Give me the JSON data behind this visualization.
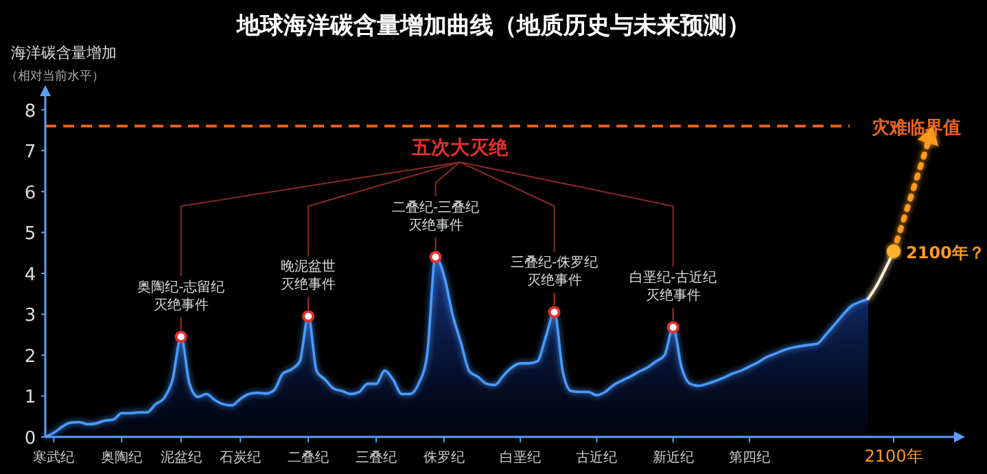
{
  "chart_data": {
    "type": "area",
    "title": "地球海洋碳含量增加曲线（地质历史与未来预测）",
    "ylabel": "海洋碳含量增加（相对当前水平）",
    "categories": [
      null,
      "寒武纪",
      null,
      null,
      null,
      null,
      null,
      null,
      null,
      "奥陶纪",
      null,
      null,
      null,
      null,
      null,
      null,
      "泥盆纪",
      null,
      null,
      null,
      null,
      null,
      null,
      "石炭纪",
      null,
      null,
      null,
      null,
      null,
      null,
      null,
      "二叠纪",
      null,
      null,
      null,
      null,
      null,
      null,
      null,
      "三叠纪",
      null,
      null,
      null,
      null,
      null,
      null,
      null,
      "侏罗纪",
      null,
      null,
      null,
      null,
      null,
      null,
      null,
      null,
      "白垩纪",
      null,
      null,
      null,
      null,
      null,
      null,
      null,
      null,
      "古近纪",
      null,
      null,
      null,
      null,
      null,
      null,
      null,
      null,
      "新近纪",
      null,
      null,
      null,
      null,
      null,
      null,
      null,
      null,
      "第四纪",
      null,
      null,
      null,
      null,
      null,
      null,
      null,
      null,
      null,
      null,
      null,
      null,
      null,
      null,
      null,
      null,
      "2100年"
    ],
    "ylim": [
      0,
      8.4
    ],
    "yticks": [
      0,
      1,
      2,
      3,
      4,
      5,
      6,
      7,
      8
    ],
    "series": [
      {
        "color": "#4a9bff",
        "values": [
          0,
          0.1,
          0.25,
          0.35,
          0.36,
          0.31,
          0.33,
          0.4,
          0.42,
          0.58,
          0.58,
          0.6,
          0.6,
          0.8,
          0.95,
          1.4,
          2.45,
          1.3,
          0.98,
          1.05,
          0.9,
          0.8,
          0.77,
          0.93,
          1.05,
          1.08,
          1.06,
          1.15,
          1.55,
          1.65,
          1.85,
          2.95,
          1.6,
          1.4,
          1.18,
          1.12,
          1.05,
          1.1,
          1.3,
          1.3,
          1.62,
          1.4,
          1.05,
          1.05,
          1.3,
          2.0,
          4.4,
          3.95,
          3.0,
          2.3,
          1.6,
          1.47,
          1.3,
          1.27,
          1.5,
          1.7,
          1.8,
          1.8,
          1.85,
          2.45,
          3.05,
          1.6,
          1.12,
          1.1,
          1.1,
          1.02,
          1.1,
          1.27,
          1.38,
          1.48,
          1.6,
          1.7,
          1.85,
          2.0,
          2.68,
          1.7,
          1.3,
          1.25,
          1.3,
          1.37,
          1.45,
          1.55,
          1.62,
          1.72,
          1.82,
          1.95,
          2.03,
          2.12,
          2.18,
          2.22,
          2.25,
          2.28,
          2.5,
          2.74,
          2.98,
          3.2,
          3.3,
          3.38,
          null,
          null,
          null
        ]
      },
      {
        "type": "line",
        "color": "#fff0d0",
        "values": [
          null,
          null,
          null,
          null,
          null,
          null,
          null,
          null,
          null,
          null,
          null,
          null,
          null,
          null,
          null,
          null,
          null,
          null,
          null,
          null,
          null,
          null,
          null,
          null,
          null,
          null,
          null,
          null,
          null,
          null,
          null,
          null,
          null,
          null,
          null,
          null,
          null,
          null,
          null,
          null,
          null,
          null,
          null,
          null,
          null,
          null,
          null,
          null,
          null,
          null,
          null,
          null,
          null,
          null,
          null,
          null,
          null,
          null,
          null,
          null,
          null,
          null,
          null,
          null,
          null,
          null,
          null,
          null,
          null,
          null,
          null,
          null,
          null,
          null,
          null,
          null,
          null,
          null,
          null,
          null,
          null,
          null,
          null,
          null,
          null,
          null,
          null,
          null,
          null,
          null,
          null,
          null,
          null,
          null,
          null,
          null,
          null,
          3.38,
          3.7,
          4.1,
          4.54
        ]
      }
    ],
    "ref_lines": [
      {
        "axis": "y",
        "value": 7.6,
        "label": "灾难临界值",
        "color": "#e8641e",
        "line_style": "dashed"
      }
    ],
    "annotations": [
      "五次大灭绝",
      {
        "text": "奥陶纪-志留纪灭绝事件",
        "y": 2.45
      },
      {
        "text": "晚泥盆世灭绝事件",
        "y": 2.95
      },
      {
        "text": "二叠纪-三叠纪灭绝事件",
        "y": 4.4
      },
      {
        "text": "三叠纪-侏罗纪灭绝事件",
        "y": 3.05
      },
      {
        "text": "白垩纪-古近纪灭绝事件",
        "y": 2.68
      },
      "2100年？"
    ]
  }
}
